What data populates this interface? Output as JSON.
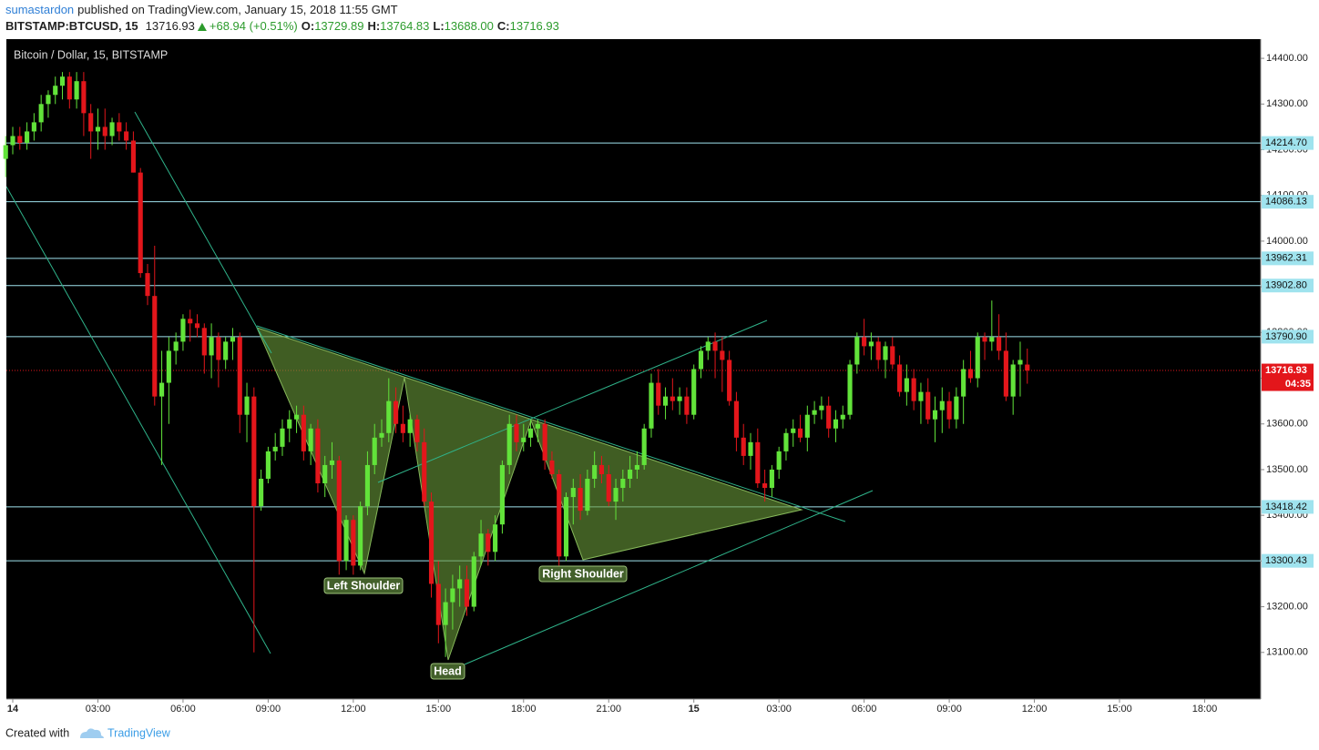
{
  "header": {
    "author": "sumastardon",
    "published": "published on TradingView.com, January 15, 2018 11:55 GMT",
    "symbol": "BITSTAMP:BTCUSD, 15",
    "last": "13716.93",
    "change": "+68.94 (+0.51%)",
    "ohlc": [
      {
        "label": "O:",
        "value": "13729.89"
      },
      {
        "label": "H:",
        "value": "13764.83"
      },
      {
        "label": "L:",
        "value": "13688.00"
      },
      {
        "label": "C:",
        "value": "13716.93"
      }
    ]
  },
  "footer": {
    "created": "Created with",
    "brand": "TradingView"
  },
  "chart_data": {
    "type": "candlestick",
    "title": "Bitcoin / Dollar, 15, BITSTAMP",
    "up_color": "#62e33a",
    "down_color": "#e3161b",
    "open": [
      14180,
      14210,
      14230,
      14215,
      14240,
      14260,
      14300,
      14320,
      14340,
      14360,
      14310,
      14350,
      14280,
      14240,
      14250,
      14230,
      14260,
      14240,
      14220,
      14150,
      13930,
      13880,
      13660,
      13690,
      13760,
      13780,
      13830,
      13820,
      13810,
      13750,
      13790,
      13740,
      13780,
      13790,
      13620,
      13660,
      13420,
      13480,
      13540,
      13550,
      13590,
      13610,
      13620,
      13540,
      13590,
      13470,
      13510,
      13520,
      13300,
      13390,
      13290,
      13420,
      13510,
      13570,
      13580,
      13650,
      13600,
      13580,
      13610,
      13560,
      13430,
      13250,
      13160,
      13210,
      13240,
      13260,
      13200,
      13310,
      13360,
      13320,
      13380,
      13510,
      13600,
      13560,
      13570,
      13590,
      13600,
      13520,
      13490,
      13310,
      13440,
      13460,
      13410,
      13480,
      13510,
      13490,
      13430,
      13460,
      13480,
      13500,
      13510,
      13590,
      13690,
      13640,
      13660,
      13650,
      13660,
      13620,
      13720,
      13760,
      13780,
      13760,
      13740,
      13650,
      13570,
      13530,
      13560,
      13470,
      13460,
      13500,
      13540,
      13580,
      13590,
      13570,
      13620,
      13630,
      13640,
      13590,
      13610,
      13620,
      13730,
      13790,
      13770,
      13780,
      13740,
      13770,
      13730,
      13670,
      13700,
      13650,
      13670,
      13610,
      13630,
      13650,
      13610,
      13660,
      13720,
      13700,
      13790,
      13780,
      13790,
      13760,
      13660,
      13730,
      13729.89
    ],
    "high": [
      14230,
      14250,
      14250,
      14260,
      14280,
      14320,
      14330,
      14360,
      14370,
      14370,
      14370,
      14370,
      14300,
      14290,
      14290,
      14270,
      14280,
      14260,
      14240,
      14160,
      13950,
      13990,
      13760,
      13790,
      13800,
      13840,
      13850,
      13840,
      13820,
      13820,
      13800,
      13790,
      13810,
      13800,
      13690,
      13680,
      13500,
      13550,
      13580,
      13610,
      13630,
      13640,
      13640,
      13600,
      13610,
      13530,
      13560,
      13530,
      13400,
      13400,
      13430,
      13540,
      13600,
      13610,
      13700,
      13680,
      13640,
      13620,
      13620,
      13590,
      13450,
      13300,
      13240,
      13270,
      13290,
      13290,
      13320,
      13390,
      13370,
      13400,
      13520,
      13620,
      13620,
      13600,
      13610,
      13610,
      13610,
      13540,
      13500,
      13450,
      13480,
      13490,
      13500,
      13540,
      13530,
      13510,
      13480,
      13500,
      13530,
      13540,
      13600,
      13710,
      13720,
      13680,
      13700,
      13680,
      13680,
      13730,
      13770,
      13790,
      13800,
      13790,
      13760,
      13670,
      13600,
      13580,
      13590,
      13500,
      13510,
      13550,
      13590,
      13610,
      13620,
      13640,
      13650,
      13660,
      13660,
      13630,
      13640,
      13740,
      13800,
      13830,
      13800,
      13790,
      13780,
      13790,
      13750,
      13730,
      13720,
      13690,
      13700,
      13660,
      13680,
      13670,
      13680,
      13740,
      13760,
      13800,
      13800,
      13870,
      13840,
      13800,
      13740,
      13780,
      13764.83
    ],
    "low": [
      14140,
      14190,
      14200,
      14200,
      14220,
      14240,
      14270,
      14300,
      14310,
      14290,
      14290,
      14230,
      14180,
      14200,
      14200,
      14210,
      14220,
      14200,
      14150,
      13920,
      13860,
      13640,
      13510,
      13600,
      13730,
      13760,
      13780,
      13790,
      13710,
      13700,
      13680,
      13720,
      13740,
      13580,
      13560,
      13100,
      13410,
      13470,
      13520,
      13530,
      13560,
      13580,
      13520,
      13510,
      13450,
      13440,
      13480,
      13270,
      13280,
      13270,
      13280,
      13400,
      13490,
      13550,
      13560,
      13580,
      13560,
      13550,
      13540,
      13420,
      13220,
      13120,
      13090,
      13150,
      13200,
      13180,
      13190,
      13290,
      13290,
      13300,
      13360,
      13490,
      13540,
      13540,
      13550,
      13560,
      13500,
      13480,
      13290,
      13300,
      13380,
      13390,
      13400,
      13460,
      13470,
      13420,
      13390,
      13430,
      13460,
      13480,
      13500,
      13570,
      13620,
      13610,
      13630,
      13620,
      13600,
      13610,
      13700,
      13740,
      13700,
      13670,
      13640,
      13540,
      13510,
      13500,
      13460,
      13430,
      13440,
      13480,
      13520,
      13550,
      13560,
      13540,
      13600,
      13610,
      13570,
      13560,
      13590,
      13610,
      13710,
      13750,
      13740,
      13720,
      13700,
      13720,
      13660,
      13640,
      13630,
      13600,
      13600,
      13560,
      13580,
      13590,
      13590,
      13600,
      13690,
      13680,
      13740,
      13760,
      13740,
      13650,
      13620,
      13660,
      13688
    ],
    "close": [
      14210,
      14230,
      14215,
      14240,
      14260,
      14300,
      14320,
      14340,
      14360,
      14310,
      14350,
      14280,
      14240,
      14250,
      14230,
      14260,
      14240,
      14220,
      14150,
      13930,
      13880,
      13660,
      13690,
      13760,
      13780,
      13830,
      13820,
      13810,
      13750,
      13790,
      13740,
      13780,
      13790,
      13620,
      13660,
      13420,
      13480,
      13540,
      13550,
      13590,
      13610,
      13620,
      13540,
      13590,
      13470,
      13510,
      13520,
      13300,
      13390,
      13290,
      13420,
      13510,
      13570,
      13580,
      13650,
      13600,
      13580,
      13610,
      13560,
      13430,
      13250,
      13160,
      13210,
      13240,
      13260,
      13200,
      13310,
      13360,
      13320,
      13380,
      13510,
      13600,
      13560,
      13570,
      13590,
      13600,
      13520,
      13490,
      13310,
      13440,
      13460,
      13410,
      13480,
      13510,
      13490,
      13430,
      13460,
      13480,
      13500,
      13510,
      13590,
      13690,
      13640,
      13660,
      13650,
      13660,
      13620,
      13720,
      13760,
      13780,
      13760,
      13740,
      13650,
      13570,
      13530,
      13560,
      13470,
      13460,
      13500,
      13540,
      13580,
      13590,
      13570,
      13620,
      13630,
      13640,
      13590,
      13610,
      13620,
      13730,
      13790,
      13770,
      13780,
      13740,
      13770,
      13730,
      13670,
      13700,
      13650,
      13670,
      13610,
      13630,
      13650,
      13610,
      13660,
      13720,
      13700,
      13790,
      13780,
      13790,
      13760,
      13660,
      13730,
      13740,
      13716.93
    ],
    "xlim": [
      0.1,
      176.9
    ],
    "xticks": [
      {
        "value": 1,
        "label": "14"
      },
      {
        "value": 13,
        "label": "03:00"
      },
      {
        "value": 25,
        "label": "06:00"
      },
      {
        "value": 37,
        "label": "09:00"
      },
      {
        "value": 49,
        "label": "12:00"
      },
      {
        "value": 61,
        "label": "15:00"
      },
      {
        "value": 73,
        "label": "18:00"
      },
      {
        "value": 85,
        "label": "21:00"
      },
      {
        "value": 97,
        "label": "15"
      },
      {
        "value": 109,
        "label": "03:00"
      },
      {
        "value": 121,
        "label": "06:00"
      },
      {
        "value": 133,
        "label": "09:00"
      },
      {
        "value": 145,
        "label": "12:00"
      },
      {
        "value": 157,
        "label": "15:00"
      },
      {
        "value": 169,
        "label": "18:00"
      }
    ],
    "ylim": [
      12998,
      14442
    ],
    "yticks": [
      {
        "value": 13100,
        "label": "13100.00"
      },
      {
        "value": 13200,
        "label": "13200.00"
      },
      {
        "value": 13300,
        "label": "13300.00"
      },
      {
        "value": 13400,
        "label": "13400.00"
      },
      {
        "value": 13500,
        "label": "13500.00"
      },
      {
        "value": 13600,
        "label": "13600.00"
      },
      {
        "value": 13700,
        "label": "13700.00"
      },
      {
        "value": 13800,
        "label": "13800.00"
      },
      {
        "value": 13900,
        "label": "13900.00"
      },
      {
        "value": 14000,
        "label": "14000.00"
      },
      {
        "value": 14100,
        "label": "14100.00"
      },
      {
        "value": 14200,
        "label": "14200.00"
      },
      {
        "value": 14300,
        "label": "14300.00"
      },
      {
        "value": 14400,
        "label": "14400.00"
      }
    ],
    "levels": [
      {
        "value": 14214.7,
        "label": "14214.70"
      },
      14086.13,
      13962.31,
      {
        "value": 13902.8,
        "label": "13902.80"
      },
      {
        "value": 13790.9,
        "label": "13790.90"
      },
      13418.42,
      13300.43
    ],
    "level_color": "#9fe3ee",
    "current_price": 13716.93,
    "countdown": "04:35",
    "annotations": [
      "Left Shoulder",
      "Head",
      "Right Shoulder"
    ]
  }
}
